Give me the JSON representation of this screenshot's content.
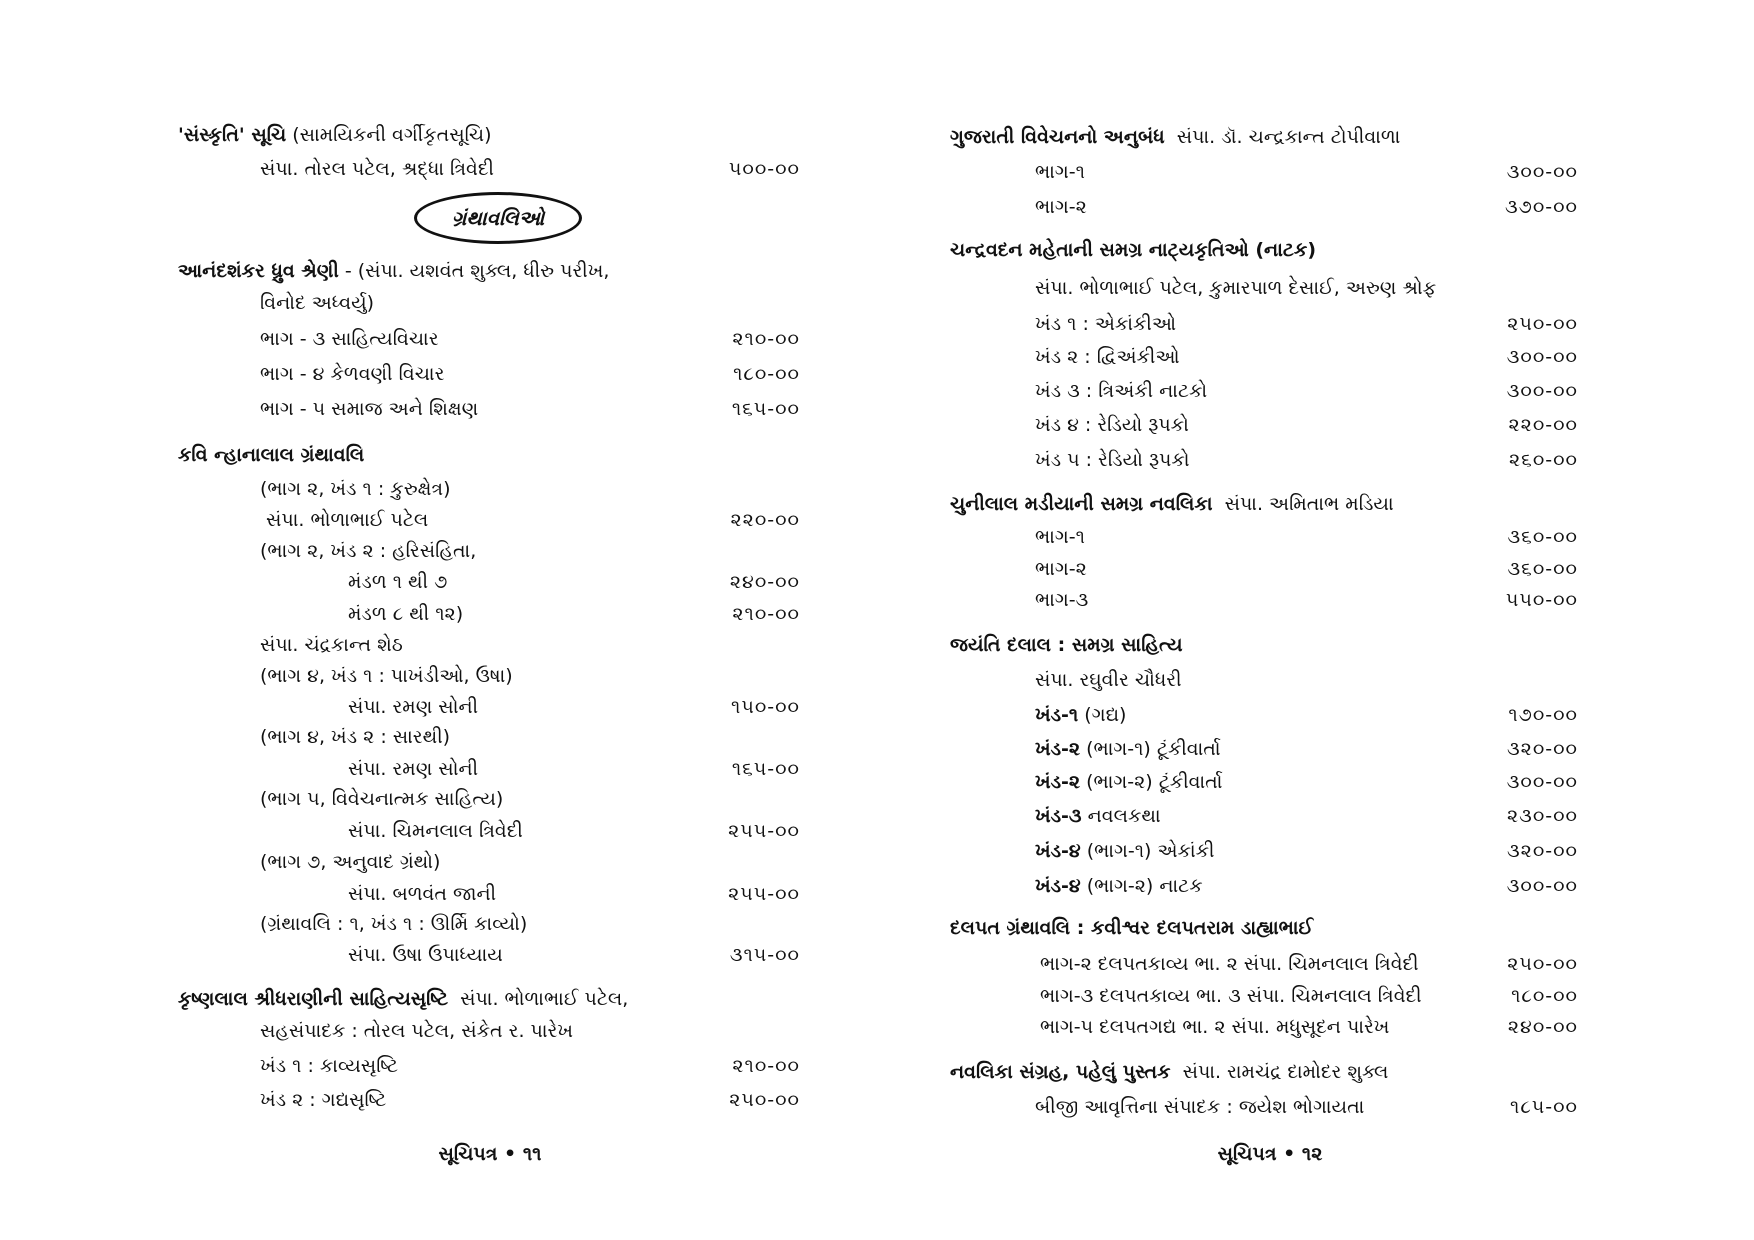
{
  "left_page": {
    "section_label": "ગ્રંથાવલિઓ",
    "rows": [
      {
        "title": "'સંસ્કૃતિ' સૂચિ",
        "text": " (સામયિકની વર્ગીકૃતસૂચિ)",
        "level": 0,
        "price": ""
      },
      {
        "title": "",
        "text": "સંપા. તોરલ પટેલ, શ્રદ્ધા ત્રિવેદી",
        "level": 1,
        "price": "૫૦૦-૦૦"
      },
      {
        "title": "આનંદશંકર ધ્રુવ શ્રેણી",
        "text": " - (સંપા. યશવંત શુક્લ, ધીરુ પરીખ,",
        "level": 0,
        "price": ""
      },
      {
        "title": "",
        "text": "વિનોદ અધ્વર્યુ)",
        "level": 1,
        "price": ""
      },
      {
        "title": "",
        "text": "ભાગ - ૩ સાહિત્યવિચાર",
        "level": 1,
        "price": "૨૧૦-૦૦"
      },
      {
        "title": "",
        "text": "ભાગ - ૪ કેળવણી વિચાર",
        "level": 1,
        "price": "૧૮૦-૦૦"
      },
      {
        "title": "",
        "text": "ભાગ - ૫ સમાજ અને શિક્ષણ",
        "level": 1,
        "price": "૧૬૫-૦૦"
      },
      {
        "title": "કવિ ન્હાનાલાલ ગ્રંથાવલિ",
        "text": "",
        "level": 0,
        "price": ""
      },
      {
        "title": "",
        "text": "(ભાગ ૨, ખંડ ૧ : કુરુક્ષેત્ર)",
        "level": 1,
        "price": ""
      },
      {
        "title": "",
        "text": " સંપા. ભોળાભાઈ પટેલ",
        "level": 1,
        "price": "૨૨૦-૦૦"
      },
      {
        "title": "",
        "text": "(ભાગ ૨, ખંડ ૨ : હરિસંહિતા,",
        "level": 1,
        "price": ""
      },
      {
        "title": "",
        "text": "મંડળ ૧ થી ૭",
        "level": 2,
        "price": "૨૪૦-૦૦"
      },
      {
        "title": "",
        "text": "મંડળ ૮ થી ૧૨)",
        "level": 2,
        "price": "૨૧૦-૦૦"
      },
      {
        "title": "",
        "text": "સંપા. ચંદ્રકાન્ત શેઠ",
        "level": 1,
        "price": ""
      },
      {
        "title": "",
        "text": "(ભાગ ૪, ખંડ ૧ : પાખંડીઓ, ઉષા)",
        "level": 1,
        "price": ""
      },
      {
        "title": "",
        "text": "સંપા. રમણ સોની",
        "level": 2,
        "price": "૧૫૦-૦૦"
      },
      {
        "title": "",
        "text": "(ભાગ ૪, ખંડ ૨ : સારથી)",
        "level": 1,
        "price": ""
      },
      {
        "title": "",
        "text": "સંપા. રમણ સોની",
        "level": 2,
        "price": "૧૬૫-૦૦"
      },
      {
        "title": "",
        "text": "(ભાગ ૫, વિવેચનાત્મક સાહિત્ય)",
        "level": 1,
        "price": ""
      },
      {
        "title": "",
        "text": "સંપા. ચિમનલાલ ત્રિવેદી",
        "level": 2,
        "price": "૨૫૫-૦૦"
      },
      {
        "title": "",
        "text": "(ભાગ ૭, અનુવાદ ગ્રંથો)",
        "level": 1,
        "price": ""
      },
      {
        "title": "",
        "text": "સંપા. બળવંત જાની",
        "level": 2,
        "price": "૨૫૫-૦૦"
      },
      {
        "title": "",
        "text": "(ગ્રંથાવલિ : ૧, ખંડ ૧ : ઊર્મિ કાવ્યો)",
        "level": 1,
        "price": ""
      },
      {
        "title": "",
        "text": "સંપા. ઉષા ઉપાધ્યાય",
        "level": 2,
        "price": "૩૧૫-૦૦"
      },
      {
        "title": "કૃષ્ણલાલ શ્રીધરાણીની સાહિત્યસૃષ્ટિ",
        "text": "  સંપા. ભોળાભાઈ પટેલ,",
        "level": 0,
        "price": ""
      },
      {
        "title": "",
        "text": "સહસંપાદક : તોરલ પટેલ, સંકેત ર. પારેખ",
        "level": 1,
        "price": ""
      },
      {
        "title": "",
        "text": "ખંડ ૧ : કાવ્યસૃષ્ટિ",
        "level": 1,
        "price": "૨૧૦-૦૦"
      },
      {
        "title": "",
        "text": "ખંડ ૨ : ગદ્યસૃષ્ટિ",
        "level": 1,
        "price": "૨૫૦-૦૦"
      }
    ],
    "footer": "સૂચિપત્ર • ૧૧"
  },
  "right_page": {
    "rows": [
      {
        "title": "ગુજરાતી વિવેચનનો અનુબંધ",
        "text": "  સંપા. ડૉ. ચન્દ્રકાન્ત ટોપીવાળા",
        "level": 0,
        "price": ""
      },
      {
        "title": "",
        "text": "ભાગ-૧",
        "level": 1,
        "price": "૩૦૦-૦૦"
      },
      {
        "title": "",
        "text": "ભાગ-૨",
        "level": 1,
        "price": "૩૭૦-૦૦"
      },
      {
        "title": "ચન્દ્રવદન મહેતાની સમગ્ર નાટ્યકૃતિઓ (નાટક)",
        "text": "",
        "level": 0,
        "price": ""
      },
      {
        "title": "",
        "text": "સંપા. ભોળાભાઈ પટેલ, કુમારપાળ દેસાઈ, અરુણ શ્રોફ",
        "level": 1,
        "price": ""
      },
      {
        "title": "",
        "text": "ખંડ ૧ : એકાંકીઓ",
        "level": 1,
        "price": "૨૫૦-૦૦"
      },
      {
        "title": "",
        "text": "ખંડ ૨ : દ્વિઅંકીઓ",
        "level": 1,
        "price": "૩૦૦-૦૦"
      },
      {
        "title": "",
        "text": "ખંડ ૩ : ત્રિઅંકી નાટકો",
        "level": 1,
        "price": "૩૦૦-૦૦"
      },
      {
        "title": "",
        "text": "ખંડ ૪ : રેડિયો રૂપકો",
        "level": 1,
        "price": "૨૨૦-૦૦"
      },
      {
        "title": "",
        "text": "ખંડ ૫ : રેડિયો રૂપકો",
        "level": 1,
        "price": "૨૬૦-૦૦"
      },
      {
        "title": "ચુનીલાલ મડીયાની સમગ્ર નવલિકા",
        "text": "  સંપા. અમિતાભ મડિયા",
        "level": 0,
        "price": ""
      },
      {
        "title": "",
        "text": "ભાગ-૧",
        "level": 1,
        "price": "૩૬૦-૦૦"
      },
      {
        "title": "",
        "text": "ભાગ-૨",
        "level": 1,
        "price": "૩૬૦-૦૦"
      },
      {
        "title": "",
        "text": "ભાગ-૩",
        "level": 1,
        "price": "૫૫૦-૦૦"
      },
      {
        "title": "જયંતિ દલાલ : સમગ્ર સાહિત્ય",
        "text": "",
        "level": 0,
        "price": ""
      },
      {
        "title": "",
        "text": "સંપા. રઘુવીર ચૌધરી",
        "level": 1,
        "price": ""
      },
      {
        "title": "ખંડ-૧",
        "text": " (ગદ્ય)",
        "level": 1,
        "price": "૧૭૦-૦૦"
      },
      {
        "title": "ખંડ-૨",
        "text": " (ભાગ-૧) ટૂંકીવાર્તા",
        "level": 1,
        "price": "૩૨૦-૦૦"
      },
      {
        "title": "ખંડ-૨",
        "text": " (ભાગ-૨) ટૂંકીવાર્તા",
        "level": 1,
        "price": "૩૦૦-૦૦"
      },
      {
        "title": "ખંડ-૩",
        "text": " નવલકથા",
        "level": 1,
        "price": "૨૩૦-૦૦"
      },
      {
        "title": "ખંડ-૪",
        "text": " (ભાગ-૧) એકાંકી",
        "level": 1,
        "price": "૩૨૦-૦૦"
      },
      {
        "title": "ખંડ-૪",
        "text": " (ભાગ-૨) નાટક",
        "level": 1,
        "price": "૩૦૦-૦૦"
      },
      {
        "title": "દલપત ગ્રંથાવલિ : કવીશ્વર દલપતરામ ડાહ્યાભાઈ",
        "text": "",
        "level": 0,
        "price": ""
      },
      {
        "title": "",
        "text": "ભાગ-૨ દલપતકાવ્ય ભા. ૨ સંપા. ચિમનલાલ ત્રિવેદી",
        "level": 1,
        "price": "૨૫૦-૦૦"
      },
      {
        "title": "",
        "text": "ભાગ-૩ દલપતકાવ્ય ભા. ૩ સંપા. ચિમનલાલ ત્રિવેદી",
        "level": 1,
        "price": "૧૮૦-૦૦"
      },
      {
        "title": "",
        "text": "ભાગ-૫ દલપતગદ્ય ભા. ૨ સંપા. મધુસૂદન પારેખ",
        "level": 1,
        "price": "૨૪૦-૦૦"
      },
      {
        "title": "નવલિકા સંગ્રહ, પહેલું પુસ્તક",
        "text": "  સંપા. રામચંદ્ર દામોદર શુક્લ",
        "level": 0,
        "price": ""
      },
      {
        "title": "",
        "text": "બીજી આવૃત્તિના સંપાદક : જયેશ ભોગાયતા",
        "level": 1,
        "price": "૧૮૫-૦૦"
      }
    ],
    "footer": "સૂચિપત્ર • ૧૨"
  }
}
